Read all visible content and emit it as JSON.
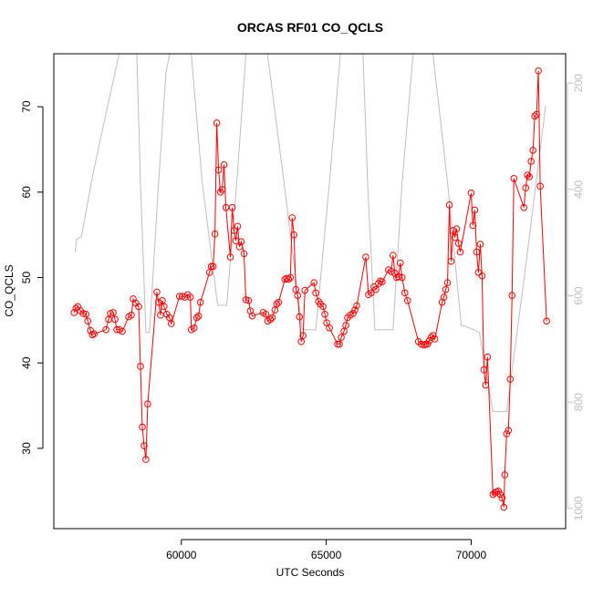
{
  "chart_data": {
    "type": "line",
    "title": "ORCAS RF01 CO_QCLS",
    "x_label": "UTC Seconds",
    "y_label": "CO_QCLS",
    "xlim": [
      55600,
      73260
    ],
    "ylim": [
      20.6,
      76.2
    ],
    "y2lim": [
      1038,
      145
    ],
    "xticks": [
      60000,
      65000,
      70000
    ],
    "yticks": [
      30,
      40,
      50,
      60,
      70
    ],
    "y2ticks": [
      200,
      400,
      600,
      800,
      1000
    ],
    "series": [
      {
        "color": "#ff0000",
        "markers": true,
        "x": [
          56300,
          56363,
          56426,
          56520,
          56614,
          56708,
          56771,
          56865,
          56928,
          56990,
          57398,
          57492,
          57555,
          57649,
          57711,
          57774,
          57868,
          57962,
          58182,
          58276,
          58339,
          58433,
          58527,
          58589,
          58652,
          58715,
          58777,
          58840,
          59154,
          59216,
          59279,
          59342,
          59404,
          59498,
          59592,
          59655,
          59937,
          60031,
          60125,
          60219,
          60313,
          60345,
          60439,
          60533,
          60596,
          60658,
          60972,
          61034,
          61097,
          61160,
          61222,
          61285,
          61348,
          61410,
          61473,
          61536,
          61692,
          61755,
          61818,
          61881,
          61943,
          62006,
          62069,
          62163,
          62226,
          62320,
          62383,
          62445,
          62822,
          62916,
          62978,
          63072,
          63135,
          63229,
          63291,
          63354,
          63574,
          63636,
          63699,
          63762,
          63825,
          63887,
          63950,
          64013,
          64076,
          64138,
          64201,
          64264,
          64577,
          64640,
          64734,
          64797,
          64891,
          64953,
          65016,
          65110,
          65392,
          65455,
          65518,
          65612,
          65675,
          65737,
          65831,
          65925,
          65988,
          66051,
          66364,
          66458,
          66553,
          66647,
          66710,
          66804,
          66867,
          66929,
          67149,
          67243,
          67305,
          67368,
          67431,
          67493,
          67556,
          67618,
          67712,
          67806,
          68182,
          68276,
          68370,
          68433,
          68496,
          68558,
          68621,
          68684,
          68747,
          68998,
          69061,
          69123,
          69185,
          69248,
          69311,
          69374,
          69436,
          69499,
          69562,
          69624,
          70000,
          70063,
          70125,
          70188,
          70251,
          70314,
          70376,
          70439,
          70502,
          70564,
          70753,
          70815,
          70878,
          70941,
          71003,
          71066,
          71129,
          71160,
          71223,
          71286,
          71348,
          71411,
          71474,
          71819,
          71882,
          71944,
          72007,
          72070,
          72133,
          72195,
          72258,
          72320,
          72383,
          72603
        ],
        "values": [
          45.9,
          46.4,
          46.6,
          46.1,
          45.8,
          45.7,
          44.9,
          43.8,
          43.3,
          43.4,
          43.9,
          45.1,
          45.8,
          45.9,
          45.1,
          43.9,
          43.9,
          43.7,
          45.4,
          45.6,
          47.5,
          47.0,
          46.6,
          39.6,
          32.5,
          30.3,
          28.7,
          35.2,
          48.3,
          47.1,
          45.6,
          47.3,
          46.6,
          45.7,
          45.3,
          44.6,
          47.8,
          47.8,
          47.7,
          48.0,
          47.7,
          43.9,
          44.1,
          45.3,
          45.5,
          47.1,
          50.6,
          51.3,
          51.3,
          55.1,
          68.1,
          62.6,
          60.0,
          60.3,
          63.2,
          58.2,
          52.4,
          58.2,
          55.5,
          54.3,
          56.0,
          53.6,
          54.2,
          52.8,
          47.4,
          47.3,
          46.1,
          45.5,
          45.9,
          45.7,
          44.9,
          45.1,
          45.3,
          46.2,
          46.9,
          47.1,
          49.8,
          49.9,
          49.8,
          50.0,
          57.0,
          55.0,
          48.6,
          47.9,
          45.4,
          42.5,
          43.2,
          48.5,
          49.4,
          48.2,
          47.2,
          46.9,
          46.6,
          45.7,
          44.7,
          44.1,
          42.2,
          42.2,
          43.0,
          43.7,
          44.4,
          45.3,
          45.6,
          45.8,
          46.2,
          46.7,
          52.4,
          48.0,
          48.2,
          48.9,
          48.6,
          49.3,
          49.6,
          49.5,
          50.9,
          50.7,
          52.6,
          50.5,
          50.0,
          50.1,
          51.7,
          50.0,
          48.2,
          47.3,
          42.5,
          42.2,
          42.1,
          42.2,
          42.2,
          42.6,
          43.0,
          43.2,
          42.8,
          47.1,
          47.7,
          48.6,
          49.4,
          58.5,
          51.9,
          55.5,
          54.7,
          55.7,
          54.0,
          53.0,
          59.9,
          56.1,
          57.9,
          53.0,
          50.6,
          53.9,
          50.2,
          39.2,
          37.4,
          40.7,
          24.6,
          24.8,
          24.9,
          25.0,
          24.6,
          24.2,
          23.1,
          26.9,
          31.7,
          32.1,
          38.1,
          47.9,
          61.6,
          58.2,
          60.5,
          62.0,
          61.8,
          63.6,
          64.9,
          68.9,
          69.1,
          74.2,
          60.7,
          44.9
        ]
      },
      {
        "color": "#bebebe",
        "markers": false,
        "axis": "y2",
        "x": [
          56332,
          56395,
          56551,
          56959,
          57429,
          57743,
          58119,
          58464,
          58589,
          58777,
          58903,
          59216,
          59467,
          59843,
          60345,
          60721,
          61254,
          61567,
          61912,
          62226,
          62602,
          62978,
          63542,
          64169,
          64640,
          65110,
          65486,
          65894,
          66270,
          66427,
          66678,
          67305,
          67618,
          67994,
          68308,
          68684,
          69185,
          69656,
          69969,
          70283,
          70753,
          71223,
          71850,
          72571
        ],
        "values": [
          518,
          493,
          489,
          369,
          250,
          173,
          78,
          147,
          387,
          669,
          669,
          387,
          181,
          78,
          147,
          387,
          618,
          618,
          387,
          147,
          78,
          147,
          387,
          664,
          664,
          387,
          147,
          78,
          147,
          387,
          664,
          664,
          387,
          147,
          78,
          147,
          387,
          655,
          661,
          669,
          818,
          818,
          558,
          243
        ]
      }
    ]
  }
}
